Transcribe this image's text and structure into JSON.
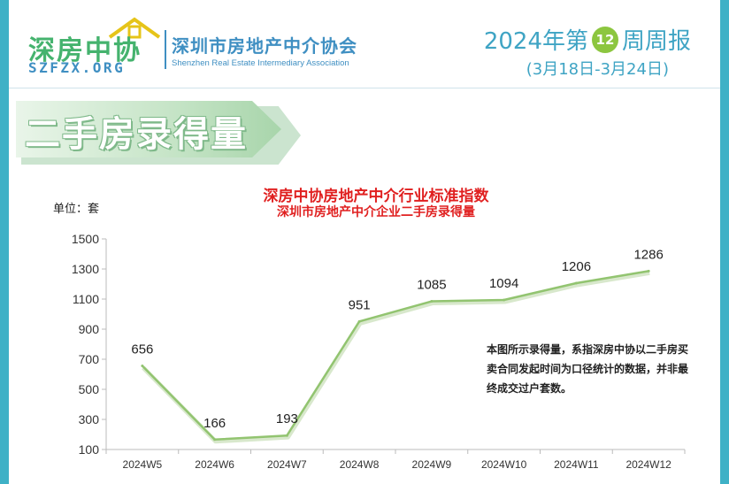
{
  "header": {
    "logo_cn": "深房中协",
    "logo_en": "SZFZX.ORG",
    "assoc_cn": "深圳市房地产中介协会",
    "assoc_en": "Shenzhen Real Estate Intermediary Association",
    "report_prefix": "2024年第",
    "week_number": "12",
    "report_suffix": "周周报",
    "date_range": "(3月18日-3月24日)"
  },
  "section": {
    "title": "二手房录得量"
  },
  "colors": {
    "teal_frame": "#3fb1c6",
    "brand_green": "#45b36e",
    "brand_blue": "#3f8fc2",
    "badge_green": "#8cc63f",
    "title_red": "#e02020",
    "line_green": "#92c470"
  },
  "chart_data": {
    "type": "line",
    "title": "深房中协房地产中介行业标准指数",
    "subtitle": "深圳市房地产中介企业二手房录得量",
    "unit_label": "单位：套",
    "categories": [
      "2024W5",
      "2024W6",
      "2024W7",
      "2024W8",
      "2024W9",
      "2024W10",
      "2024W11",
      "2024W12"
    ],
    "values": [
      656,
      166,
      193,
      951,
      1085,
      1094,
      1206,
      1286
    ],
    "data_labels": [
      "656",
      "166",
      "193",
      "951",
      "1085",
      "1094",
      "1206",
      "1286"
    ],
    "y_ticks": [
      "100",
      "300",
      "500",
      "700",
      "900",
      "1100",
      "1300",
      "1500"
    ],
    "ylim": [
      100,
      1500
    ],
    "grid": false,
    "note": "本图所示录得量，系指深房中协以二手房买卖合同发起时间为口径统计的数据，并非最终成交过户套数。"
  }
}
